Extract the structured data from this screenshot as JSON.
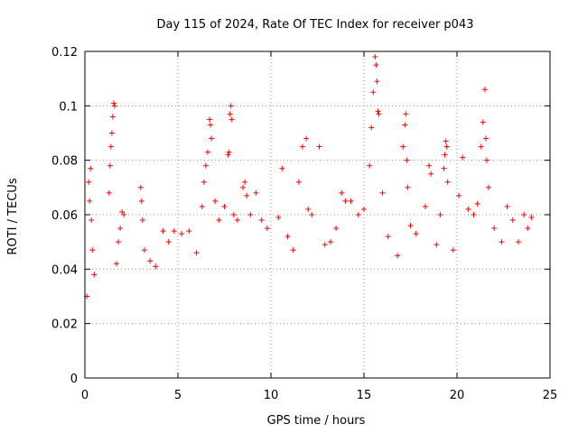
{
  "chart_data": {
    "type": "scatter",
    "title": "Day 115 of 2024, Rate Of TEC Index for receiver p043",
    "xlabel": "GPS time / hours",
    "ylabel": "ROTI / TECUs",
    "xlim": [
      0,
      25
    ],
    "ylim": [
      0,
      0.12
    ],
    "x_ticks": [
      "0",
      "5",
      "10",
      "15",
      "20",
      "25"
    ],
    "y_ticks": [
      "0",
      "0.02",
      "0.04",
      "0.06",
      "0.08",
      "0.1",
      "0.12"
    ],
    "grid": true,
    "marker": "+",
    "marker_color": "#ff0000",
    "series": [
      {
        "points": [
          [
            0.1,
            0.03
          ],
          [
            0.2,
            0.072
          ],
          [
            0.25,
            0.065
          ],
          [
            0.3,
            0.077
          ],
          [
            0.35,
            0.058
          ],
          [
            0.4,
            0.047
          ],
          [
            0.5,
            0.038
          ],
          [
            1.3,
            0.068
          ],
          [
            1.35,
            0.078
          ],
          [
            1.4,
            0.085
          ],
          [
            1.45,
            0.09
          ],
          [
            1.5,
            0.096
          ],
          [
            1.55,
            0.101
          ],
          [
            1.6,
            0.1
          ],
          [
            1.7,
            0.042
          ],
          [
            1.8,
            0.05
          ],
          [
            1.9,
            0.055
          ],
          [
            2.0,
            0.061
          ],
          [
            2.1,
            0.06
          ],
          [
            3.0,
            0.07
          ],
          [
            3.05,
            0.065
          ],
          [
            3.1,
            0.058
          ],
          [
            3.2,
            0.047
          ],
          [
            3.5,
            0.043
          ],
          [
            3.8,
            0.041
          ],
          [
            4.2,
            0.054
          ],
          [
            4.5,
            0.05
          ],
          [
            4.8,
            0.054
          ],
          [
            5.2,
            0.053
          ],
          [
            5.6,
            0.054
          ],
          [
            6.0,
            0.046
          ],
          [
            6.3,
            0.063
          ],
          [
            6.4,
            0.072
          ],
          [
            6.5,
            0.078
          ],
          [
            6.6,
            0.083
          ],
          [
            6.7,
            0.095
          ],
          [
            6.75,
            0.093
          ],
          [
            6.8,
            0.088
          ],
          [
            7.0,
            0.065
          ],
          [
            7.2,
            0.058
          ],
          [
            7.5,
            0.063
          ],
          [
            7.7,
            0.082
          ],
          [
            7.75,
            0.083
          ],
          [
            7.8,
            0.097
          ],
          [
            7.85,
            0.1
          ],
          [
            7.9,
            0.095
          ],
          [
            8.0,
            0.06
          ],
          [
            8.2,
            0.058
          ],
          [
            8.5,
            0.07
          ],
          [
            8.6,
            0.072
          ],
          [
            8.7,
            0.067
          ],
          [
            8.9,
            0.06
          ],
          [
            9.2,
            0.068
          ],
          [
            9.5,
            0.058
          ],
          [
            9.8,
            0.055
          ],
          [
            10.4,
            0.059
          ],
          [
            10.6,
            0.077
          ],
          [
            10.9,
            0.052
          ],
          [
            11.2,
            0.047
          ],
          [
            11.5,
            0.072
          ],
          [
            11.7,
            0.085
          ],
          [
            11.9,
            0.088
          ],
          [
            12.0,
            0.062
          ],
          [
            12.2,
            0.06
          ],
          [
            12.6,
            0.085
          ],
          [
            12.9,
            0.049
          ],
          [
            13.2,
            0.05
          ],
          [
            13.5,
            0.055
          ],
          [
            13.8,
            0.068
          ],
          [
            14.0,
            0.065
          ],
          [
            14.3,
            0.065
          ],
          [
            14.7,
            0.06
          ],
          [
            15.0,
            0.062
          ],
          [
            15.3,
            0.078
          ],
          [
            15.4,
            0.092
          ],
          [
            15.5,
            0.105
          ],
          [
            15.6,
            0.118
          ],
          [
            15.65,
            0.115
          ],
          [
            15.7,
            0.109
          ],
          [
            15.75,
            0.098
          ],
          [
            15.8,
            0.097
          ],
          [
            16.0,
            0.068
          ],
          [
            16.3,
            0.052
          ],
          [
            16.8,
            0.045
          ],
          [
            17.1,
            0.085
          ],
          [
            17.2,
            0.093
          ],
          [
            17.25,
            0.097
          ],
          [
            17.3,
            0.08
          ],
          [
            17.35,
            0.07
          ],
          [
            17.5,
            0.056
          ],
          [
            17.8,
            0.053
          ],
          [
            18.3,
            0.063
          ],
          [
            18.5,
            0.078
          ],
          [
            18.6,
            0.075
          ],
          [
            18.9,
            0.049
          ],
          [
            19.1,
            0.06
          ],
          [
            19.3,
            0.077
          ],
          [
            19.35,
            0.082
          ],
          [
            19.4,
            0.087
          ],
          [
            19.45,
            0.085
          ],
          [
            19.5,
            0.072
          ],
          [
            19.8,
            0.047
          ],
          [
            20.1,
            0.067
          ],
          [
            20.3,
            0.081
          ],
          [
            20.6,
            0.062
          ],
          [
            20.9,
            0.06
          ],
          [
            21.1,
            0.064
          ],
          [
            21.3,
            0.085
          ],
          [
            21.4,
            0.094
          ],
          [
            21.5,
            0.106
          ],
          [
            21.55,
            0.088
          ],
          [
            21.6,
            0.08
          ],
          [
            21.7,
            0.07
          ],
          [
            22.0,
            0.055
          ],
          [
            22.4,
            0.05
          ],
          [
            22.7,
            0.063
          ],
          [
            23.0,
            0.058
          ],
          [
            23.3,
            0.05
          ],
          [
            23.6,
            0.06
          ],
          [
            23.8,
            0.055
          ],
          [
            24.0,
            0.059
          ]
        ]
      }
    ]
  }
}
